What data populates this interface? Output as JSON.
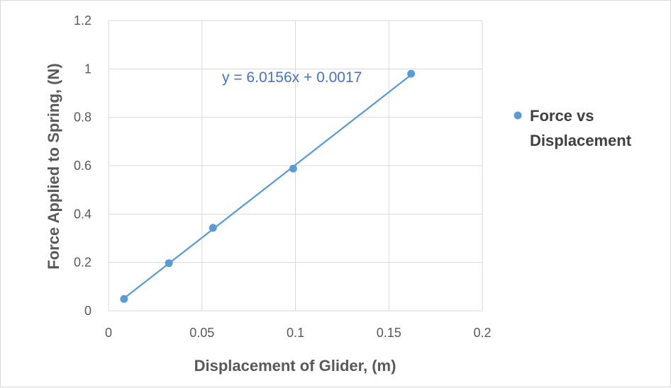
{
  "chart_data": {
    "type": "scatter",
    "xlabel": "Displacement of Glider, (m)",
    "ylabel": "Force Applied to Spring, (N)",
    "xlim": [
      0,
      0.2
    ],
    "ylim": [
      0,
      1.2
    ],
    "x_ticks": [
      "0",
      "0.05",
      "0.1",
      "0.15",
      "0.2"
    ],
    "y_ticks": [
      "0",
      "0.2",
      "0.4",
      "0.6",
      "0.8",
      "1",
      "1.2"
    ],
    "grid": true,
    "legend_position": "right",
    "series": [
      {
        "name": "Force vs Displacement",
        "name_lines": [
          "Force vs",
          "Displacement"
        ],
        "color": "#5b9bd5",
        "x": [
          0.0083,
          0.0323,
          0.0559,
          0.0988,
          0.1619
        ],
        "y": [
          0.049,
          0.197,
          0.343,
          0.588,
          0.98
        ]
      }
    ],
    "trendline": {
      "type": "linear",
      "slope": 6.0156,
      "intercept": 0.0017,
      "equation": "y = 6.0156x + 0.0017",
      "color": "#5b9bd5",
      "label_color": "#4472c4"
    }
  }
}
